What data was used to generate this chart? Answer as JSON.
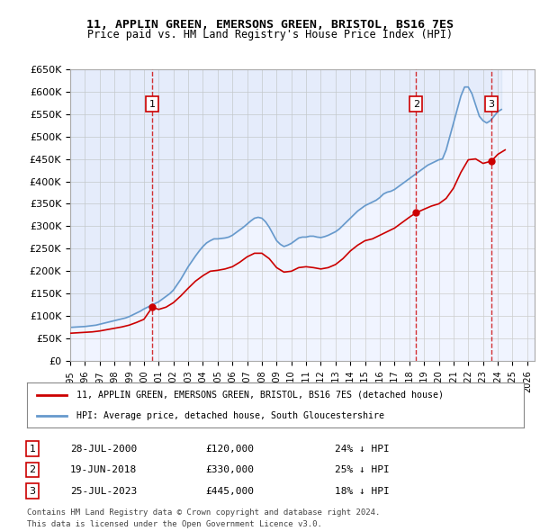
{
  "title": "11, APPLIN GREEN, EMERSONS GREEN, BRISTOL, BS16 7ES",
  "subtitle": "Price paid vs. HM Land Registry's House Price Index (HPI)",
  "legend_label_red": "11, APPLIN GREEN, EMERSONS GREEN, BRISTOL, BS16 7ES (detached house)",
  "legend_label_blue": "HPI: Average price, detached house, South Gloucestershire",
  "footnote1": "Contains HM Land Registry data © Crown copyright and database right 2024.",
  "footnote2": "This data is licensed under the Open Government Licence v3.0.",
  "ylim": [
    0,
    650000
  ],
  "yticks": [
    0,
    50000,
    100000,
    150000,
    200000,
    250000,
    300000,
    350000,
    400000,
    450000,
    500000,
    550000,
    600000,
    650000
  ],
  "ytick_labels": [
    "£0",
    "£50K",
    "£100K",
    "£150K",
    "£200K",
    "£250K",
    "£300K",
    "£350K",
    "£400K",
    "£450K",
    "£500K",
    "£550K",
    "£600K",
    "£650K"
  ],
  "xlim_start": 1995.0,
  "xlim_end": 2026.5,
  "xtick_years": [
    1995,
    1996,
    1997,
    1998,
    1999,
    2000,
    2001,
    2002,
    2003,
    2004,
    2005,
    2006,
    2007,
    2008,
    2009,
    2010,
    2011,
    2012,
    2013,
    2014,
    2015,
    2016,
    2017,
    2018,
    2019,
    2020,
    2021,
    2022,
    2023,
    2024,
    2025,
    2026
  ],
  "sales": [
    {
      "num": 1,
      "date": "28-JUL-2000",
      "price": 120000,
      "year": 2000.57,
      "hpi_pct": "24% ↓ HPI"
    },
    {
      "num": 2,
      "date": "19-JUN-2018",
      "price": 330000,
      "year": 2018.46,
      "hpi_pct": "25% ↓ HPI"
    },
    {
      "num": 3,
      "date": "25-JUL-2023",
      "price": 445000,
      "year": 2023.57,
      "hpi_pct": "18% ↓ HPI"
    }
  ],
  "hpi_data": {
    "years": [
      1995.0,
      1995.25,
      1995.5,
      1995.75,
      1996.0,
      1996.25,
      1996.5,
      1996.75,
      1997.0,
      1997.25,
      1997.5,
      1997.75,
      1998.0,
      1998.25,
      1998.5,
      1998.75,
      1999.0,
      1999.25,
      1999.5,
      1999.75,
      2000.0,
      2000.25,
      2000.5,
      2000.75,
      2001.0,
      2001.25,
      2001.5,
      2001.75,
      2002.0,
      2002.25,
      2002.5,
      2002.75,
      2003.0,
      2003.25,
      2003.5,
      2003.75,
      2004.0,
      2004.25,
      2004.5,
      2004.75,
      2005.0,
      2005.25,
      2005.5,
      2005.75,
      2006.0,
      2006.25,
      2006.5,
      2006.75,
      2007.0,
      2007.25,
      2007.5,
      2007.75,
      2008.0,
      2008.25,
      2008.5,
      2008.75,
      2009.0,
      2009.25,
      2009.5,
      2009.75,
      2010.0,
      2010.25,
      2010.5,
      2010.75,
      2011.0,
      2011.25,
      2011.5,
      2011.75,
      2012.0,
      2012.25,
      2012.5,
      2012.75,
      2013.0,
      2013.25,
      2013.5,
      2013.75,
      2014.0,
      2014.25,
      2014.5,
      2014.75,
      2015.0,
      2015.25,
      2015.5,
      2015.75,
      2016.0,
      2016.25,
      2016.5,
      2016.75,
      2017.0,
      2017.25,
      2017.5,
      2017.75,
      2018.0,
      2018.25,
      2018.5,
      2018.75,
      2019.0,
      2019.25,
      2019.5,
      2019.75,
      2020.0,
      2020.25,
      2020.5,
      2020.75,
      2021.0,
      2021.25,
      2021.5,
      2021.75,
      2022.0,
      2022.25,
      2022.5,
      2022.75,
      2023.0,
      2023.25,
      2023.5,
      2023.75,
      2024.0,
      2024.25
    ],
    "values": [
      75000,
      75500,
      76000,
      76500,
      77000,
      78000,
      79000,
      80000,
      82000,
      84000,
      86000,
      88000,
      90000,
      92000,
      94000,
      96000,
      99000,
      103000,
      107000,
      111000,
      116000,
      120000,
      124000,
      128000,
      132000,
      138000,
      144000,
      150000,
      158000,
      170000,
      182000,
      196000,
      210000,
      222000,
      234000,
      245000,
      255000,
      263000,
      268000,
      272000,
      272000,
      273000,
      274000,
      276000,
      280000,
      286000,
      292000,
      298000,
      305000,
      312000,
      318000,
      320000,
      318000,
      310000,
      298000,
      283000,
      268000,
      260000,
      255000,
      258000,
      262000,
      268000,
      274000,
      276000,
      276000,
      278000,
      278000,
      276000,
      275000,
      277000,
      280000,
      284000,
      288000,
      294000,
      302000,
      310000,
      318000,
      326000,
      334000,
      340000,
      346000,
      350000,
      354000,
      358000,
      364000,
      372000,
      376000,
      378000,
      382000,
      388000,
      394000,
      400000,
      406000,
      412000,
      418000,
      424000,
      430000,
      436000,
      440000,
      444000,
      448000,
      450000,
      470000,
      500000,
      530000,
      560000,
      590000,
      610000,
      610000,
      595000,
      570000,
      545000,
      535000,
      530000,
      535000,
      545000,
      555000,
      560000
    ]
  },
  "red_line_data": {
    "years": [
      1995.0,
      1995.5,
      1996.0,
      1996.5,
      1997.0,
      1997.5,
      1998.0,
      1998.5,
      1999.0,
      1999.5,
      2000.0,
      2000.57,
      2001.0,
      2001.5,
      2002.0,
      2002.5,
      2003.0,
      2003.5,
      2004.0,
      2004.5,
      2005.0,
      2005.5,
      2006.0,
      2006.5,
      2007.0,
      2007.5,
      2008.0,
      2008.5,
      2009.0,
      2009.5,
      2010.0,
      2010.5,
      2011.0,
      2011.5,
      2012.0,
      2012.5,
      2013.0,
      2013.5,
      2014.0,
      2014.5,
      2015.0,
      2015.5,
      2016.0,
      2016.5,
      2017.0,
      2017.5,
      2018.0,
      2018.46,
      2019.0,
      2019.5,
      2020.0,
      2020.5,
      2021.0,
      2021.5,
      2022.0,
      2022.5,
      2023.0,
      2023.57,
      2024.0,
      2024.5
    ],
    "values": [
      62000,
      63000,
      64000,
      65000,
      67000,
      70000,
      73000,
      76000,
      80000,
      86000,
      93000,
      120000,
      115000,
      120000,
      130000,
      145000,
      162000,
      178000,
      190000,
      200000,
      202000,
      205000,
      210000,
      220000,
      232000,
      240000,
      240000,
      228000,
      208000,
      198000,
      200000,
      208000,
      210000,
      208000,
      205000,
      208000,
      215000,
      228000,
      245000,
      258000,
      268000,
      272000,
      280000,
      288000,
      296000,
      308000,
      320000,
      330000,
      338000,
      345000,
      350000,
      362000,
      385000,
      420000,
      448000,
      450000,
      440000,
      445000,
      460000,
      470000
    ]
  },
  "background_color": "#f0f4ff",
  "plot_bg_color": "#f0f4ff",
  "red_color": "#cc0000",
  "blue_color": "#6699cc",
  "grid_color": "#cccccc",
  "sale_marker_color": "#cc0000",
  "vline_color": "#cc0000",
  "box_color": "#cc0000"
}
